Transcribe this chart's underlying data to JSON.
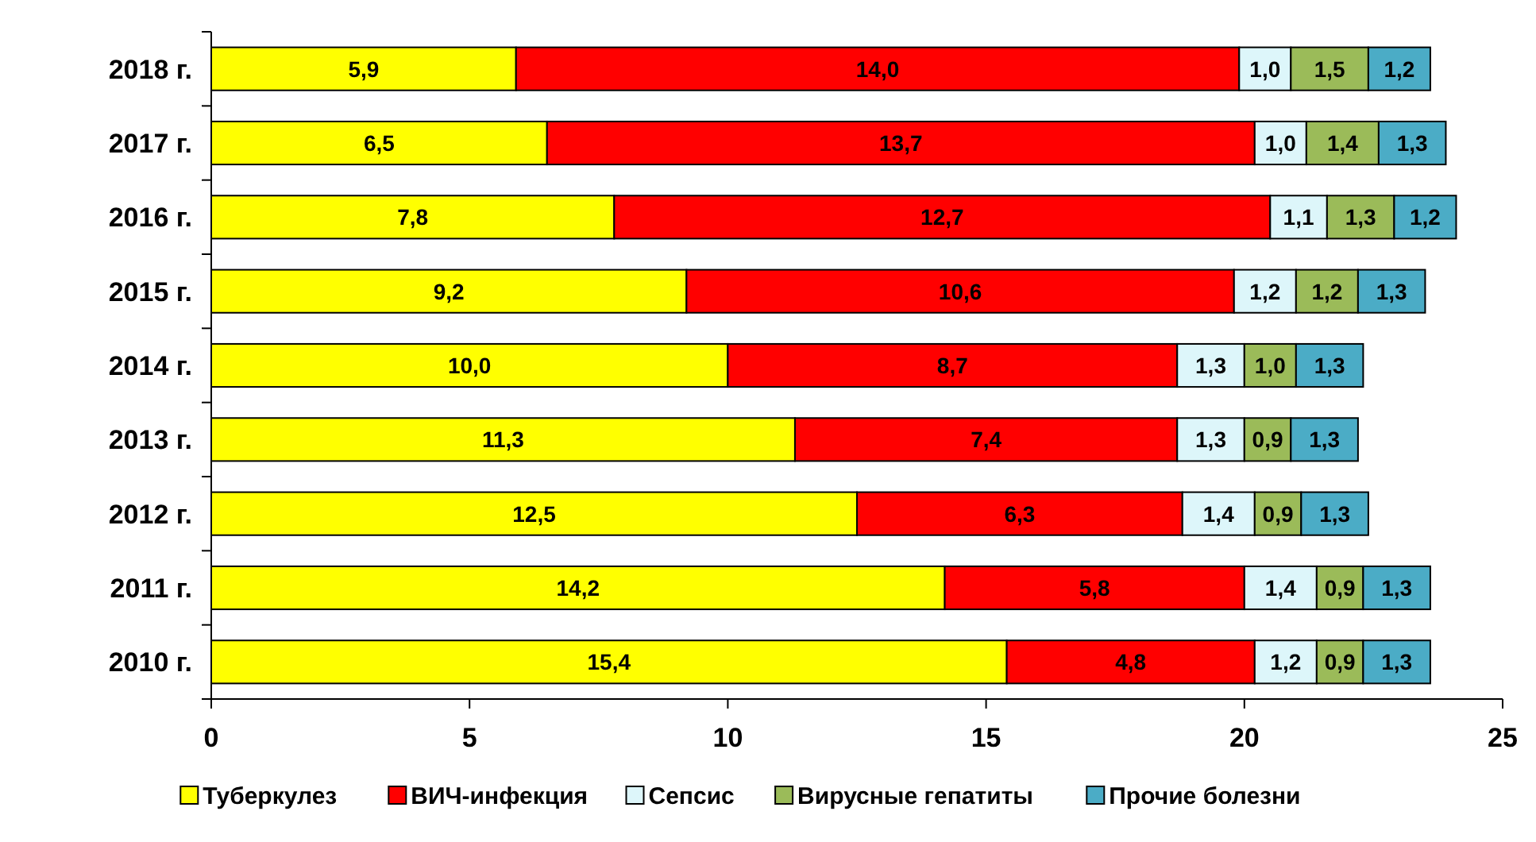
{
  "chart_data": {
    "type": "bar",
    "orientation": "horizontal",
    "stacked": true,
    "categories": [
      "2018 г.",
      "2017 г.",
      "2016 г.",
      "2015 г.",
      "2014 г.",
      "2013 г.",
      "2012 г.",
      "2011 г.",
      "2010 г."
    ],
    "xlim": [
      0,
      25
    ],
    "xticks": [
      0,
      5,
      10,
      15,
      20,
      25
    ],
    "grid": false,
    "legend": "bottom",
    "series": [
      {
        "name": "Туберкулез",
        "color": "#ffff00",
        "values": [
          5.9,
          6.5,
          7.8,
          9.2,
          10.0,
          11.3,
          12.5,
          14.2,
          15.4
        ],
        "value_labels": [
          "5,9",
          "6,5",
          "7,8",
          "9,2",
          "10,0",
          "11,3",
          "12,5",
          "14,2",
          "15,4"
        ]
      },
      {
        "name": "ВИЧ-инфекция",
        "color": "#ff0000",
        "values": [
          14.0,
          13.7,
          12.7,
          10.6,
          8.7,
          7.4,
          6.3,
          5.8,
          4.8
        ],
        "value_labels": [
          "14,0",
          "13,7",
          "12,7",
          "10,6",
          "8,7",
          "7,4",
          "6,3",
          "5,8",
          "4,8"
        ]
      },
      {
        "name": "Сепсис",
        "color": "#ddf6fa",
        "values": [
          1.0,
          1.0,
          1.1,
          1.2,
          1.3,
          1.3,
          1.4,
          1.4,
          1.2
        ],
        "value_labels": [
          "1,0",
          "1,0",
          "1,1",
          "1,2",
          "1,3",
          "1,3",
          "1,4",
          "1,4",
          "1,2"
        ]
      },
      {
        "name": "Вирусные гепатиты",
        "color": "#9bbb59",
        "values": [
          1.5,
          1.4,
          1.3,
          1.2,
          1.0,
          0.9,
          0.9,
          0.9,
          0.9
        ],
        "value_labels": [
          "1,5",
          "1,4",
          "1,3",
          "1,2",
          "1,0",
          "0,9",
          "0,9",
          "0,9",
          "0,9"
        ]
      },
      {
        "name": "Прочие болезни",
        "color": "#4bacc6",
        "values": [
          1.2,
          1.3,
          1.2,
          1.3,
          1.3,
          1.3,
          1.3,
          1.3,
          1.3
        ],
        "value_labels": [
          "1,2",
          "1,3",
          "1,2",
          "1,3",
          "1,3",
          "1,3",
          "1,3",
          "1,3",
          "1,3"
        ]
      }
    ]
  }
}
